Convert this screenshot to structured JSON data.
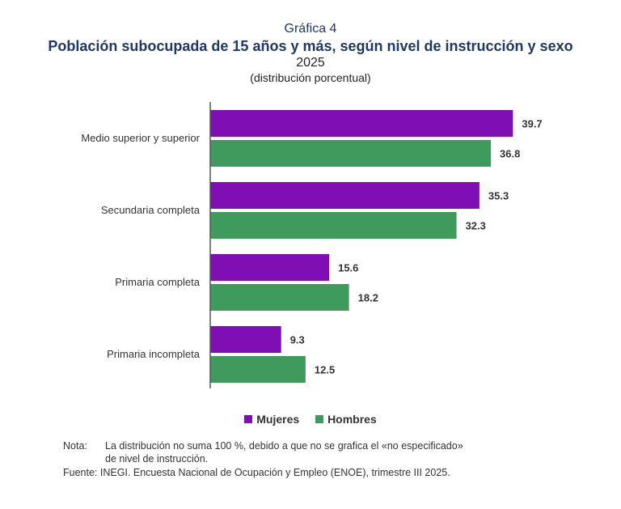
{
  "header": {
    "kicker": "Gráfica 4",
    "title": "Población subocupada de 15 años y más, según nivel de instrucción y sexo",
    "year": "2025",
    "subtitle": "(distribución porcentual)"
  },
  "chart_data": {
    "type": "bar",
    "orientation": "horizontal",
    "categories": [
      "Medio superior y superior",
      "Secundaria completa",
      "Primaria completa",
      "Primaria incompleta"
    ],
    "series": [
      {
        "name": "Mujeres",
        "color": "#7f0eb5",
        "values": [
          39.7,
          35.3,
          15.6,
          9.3
        ]
      },
      {
        "name": "Hombres",
        "color": "#3f9a5d",
        "values": [
          36.8,
          32.3,
          18.2,
          12.5
        ]
      }
    ],
    "xlim": [
      0,
      42
    ],
    "grid": false,
    "legend_position": "bottom"
  },
  "legend": {
    "mujeres": "Mujeres",
    "hombres": "Hombres"
  },
  "notes": {
    "nota_label": "Nota:",
    "nota_line1": "La distribución no suma 100 %, debido a que no se grafica el «no especificado»",
    "nota_line2": "de nivel de instrucción.",
    "fuente_label": "Fuente:",
    "fuente_text": "INEGI. Encuesta Nacional de Ocupación y Empleo (ENOE), trimestre III 2025."
  }
}
